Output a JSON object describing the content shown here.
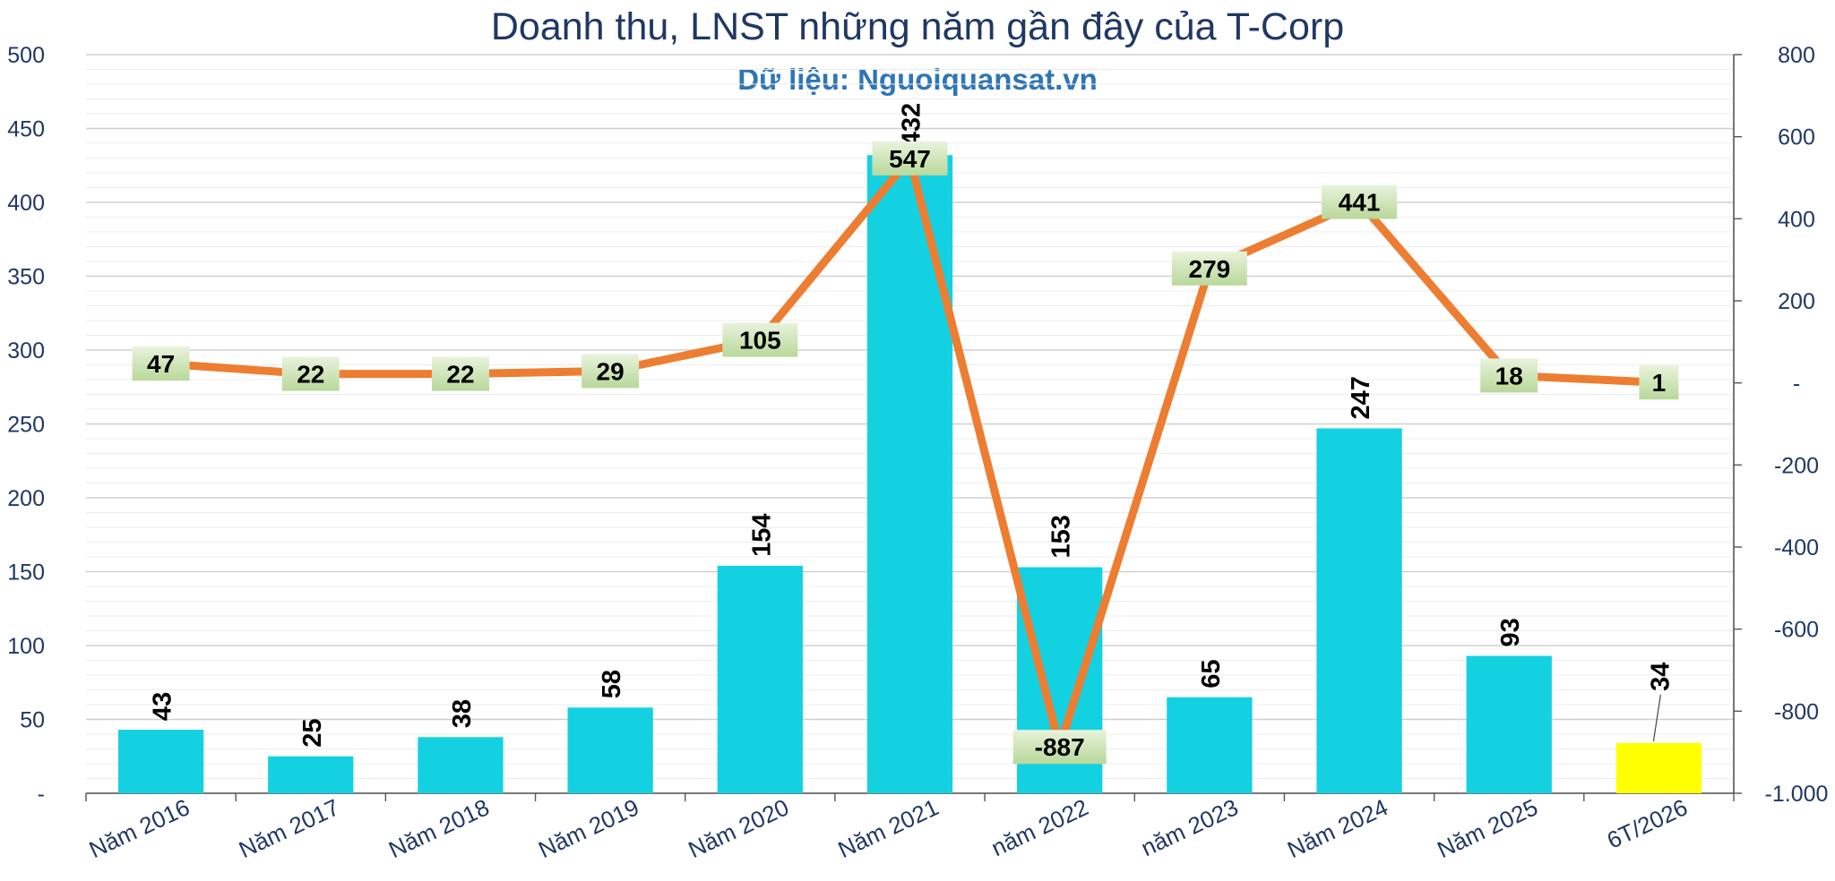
{
  "chart_data": {
    "type": "bar",
    "title": "Doanh thu, LNST những năm gần đây của T-Corp",
    "subtitle": "Dữ liệu: Nguoiquansat.vn",
    "categories": [
      "Năm 2016",
      "Năm 2017",
      "Năm 2018",
      "Năm 2019",
      "Năm 2020",
      "Năm 2021",
      "năm 2022",
      "năm 2023",
      "Năm 2024",
      "Năm 2025",
      "6T/2026"
    ],
    "series": [
      {
        "type": "bar",
        "axis": "left",
        "values": [
          43,
          25,
          38,
          58,
          154,
          432,
          153,
          65,
          247,
          93,
          34
        ],
        "labels": [
          "43",
          "25",
          "38",
          "58",
          "154",
          "432",
          "153",
          "65",
          "247",
          "93",
          "34"
        ],
        "color": "#14d1e1",
        "highlight_last_color": "#ffff00"
      },
      {
        "type": "line",
        "axis": "right",
        "values": [
          47,
          22,
          22,
          29,
          105,
          547,
          -887,
          279,
          441,
          18,
          1
        ],
        "labels": [
          "47",
          "22",
          "22",
          "29",
          "105",
          "547",
          "-887",
          "279",
          "441",
          "18",
          "1"
        ],
        "color": "#ed7d31"
      }
    ],
    "y_left": {
      "min": 0,
      "max": 500,
      "ticks": [
        "-",
        "50",
        "100",
        "150",
        "200",
        "250",
        "300",
        "350",
        "400",
        "450",
        "500"
      ]
    },
    "y_right": {
      "min": -1000,
      "max": 800,
      "ticks": [
        "-1.000",
        "-800",
        "-600",
        "-400",
        "-200",
        "-",
        "200",
        "400",
        "600",
        "800"
      ]
    },
    "grid": true,
    "legend": "none"
  }
}
